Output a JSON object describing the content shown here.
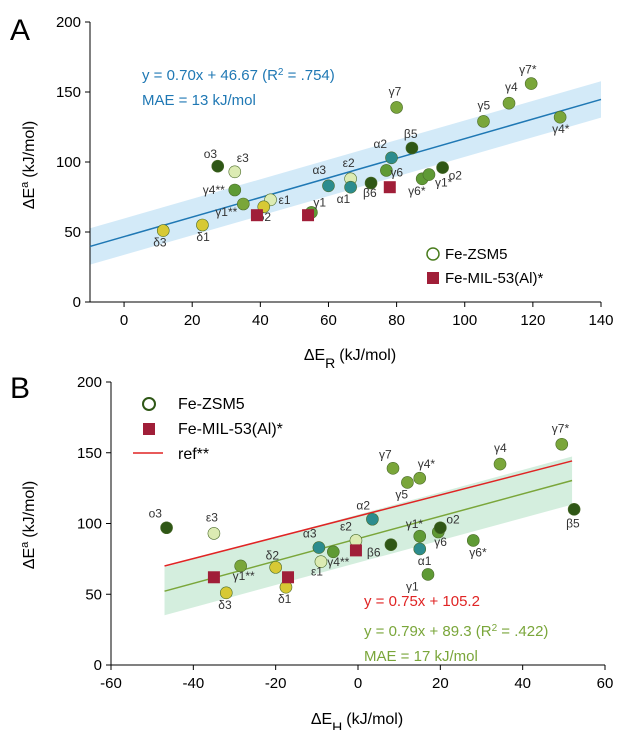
{
  "colors": {
    "zsm5_dark": "#2f5716",
    "zsm5_mid": "#5f9a35",
    "zsm5_green": "#7aa63a",
    "zsm5_yellow": "#d7c934",
    "zsm5_pale": "#dcebb3",
    "zsm5_teal": "#2c8c8e",
    "mil": "#a01e38",
    "fit_a": "#1f78b4",
    "band_a": "#cbe6f7",
    "fit_b": "#7aa63a",
    "band_b": "#cdebd8",
    "ref": "#e02424",
    "mae_b": "#7aa63a"
  },
  "chart_data": [
    {
      "panel_label": "A",
      "type": "scatter",
      "xlabel": "ΔE",
      "xlabel_sub": "R",
      "xlabel_unit": "(kJ/mol)",
      "ylabel": "ΔE",
      "ylabel_sup": "a",
      "ylabel_unit": "(kJ/mol)",
      "xlim": [
        -10,
        140
      ],
      "ylim": [
        0,
        200
      ],
      "xticks": [
        "0",
        "20",
        "40",
        "60",
        "80",
        "100",
        "120",
        "140"
      ],
      "yticks": [
        "0",
        "50",
        "100",
        "150",
        "200"
      ],
      "fit": {
        "slope": 0.7,
        "intercept": 46.67,
        "band": 13
      },
      "equation": "y = 0.70x + 46.67 (R",
      "equation_sup": "2",
      "equation_tail": " = .754)",
      "mae": "MAE = 13 kJ/mol",
      "legend_position": "bottom-right",
      "legend": [
        {
          "label": "Fe-ZSM5",
          "marker": "circle-open"
        },
        {
          "label": "Fe-MIL-53(Al)*",
          "marker": "square"
        }
      ],
      "series": [
        {
          "name": "Fe-ZSM5",
          "marker": "circle",
          "points": [
            {
              "x": 27.5,
              "y": 97,
              "label": "o3",
              "color": "dark"
            },
            {
              "x": 32.5,
              "y": 93,
              "label": "ε3",
              "color": "pale"
            },
            {
              "x": 32.5,
              "y": 80,
              "label": "γ4**",
              "color": "mid"
            },
            {
              "x": 35,
              "y": 70,
              "label": "γ1**",
              "color": "green"
            },
            {
              "x": 43,
              "y": 73,
              "label": "ε1",
              "color": "pale"
            },
            {
              "x": 41,
              "y": 68,
              "label": "δ2",
              "color": "yellow"
            },
            {
              "x": 23,
              "y": 55,
              "label": "δ1",
              "color": "yellow"
            },
            {
              "x": 11.5,
              "y": 51,
              "label": "δ3",
              "color": "yellow"
            },
            {
              "x": 55,
              "y": 64,
              "label": "γ1",
              "color": "mid"
            },
            {
              "x": 60,
              "y": 83,
              "label": "α3",
              "color": "teal"
            },
            {
              "x": 66.5,
              "y": 88,
              "label": "ε2",
              "color": "pale"
            },
            {
              "x": 66.5,
              "y": 82,
              "label": "α1",
              "color": "teal"
            },
            {
              "x": 72.5,
              "y": 85,
              "label": "β6",
              "color": "dark"
            },
            {
              "x": 77,
              "y": 94,
              "label": "γ6",
              "color": "mid"
            },
            {
              "x": 78.5,
              "y": 103,
              "label": "α2",
              "color": "teal"
            },
            {
              "x": 80,
              "y": 139,
              "label": "γ7",
              "color": "green"
            },
            {
              "x": 84.5,
              "y": 110,
              "label": "β5",
              "color": "dark"
            },
            {
              "x": 87.5,
              "y": 88,
              "label": "γ6*",
              "color": "mid"
            },
            {
              "x": 89.5,
              "y": 91,
              "label": "γ1*",
              "color": "mid"
            },
            {
              "x": 93.5,
              "y": 96,
              "label": "o2",
              "color": "dark"
            },
            {
              "x": 105.5,
              "y": 129,
              "label": "γ5",
              "color": "green"
            },
            {
              "x": 113,
              "y": 142,
              "label": "γ4",
              "color": "green"
            },
            {
              "x": 119.5,
              "y": 156,
              "label": "γ7*",
              "color": "green"
            },
            {
              "x": 128,
              "y": 132,
              "label": "γ4*",
              "color": "green"
            }
          ]
        },
        {
          "name": "Fe-MIL-53(Al)*",
          "marker": "square",
          "points": [
            {
              "x": 39,
              "y": 62,
              "color": "mil"
            },
            {
              "x": 54,
              "y": 62,
              "color": "mil"
            },
            {
              "x": 78,
              "y": 82,
              "color": "mil"
            }
          ]
        }
      ]
    },
    {
      "panel_label": "B",
      "type": "scatter",
      "xlabel": "ΔE",
      "xlabel_sub": "H",
      "xlabel_unit": "(kJ/mol)",
      "ylabel": "ΔE",
      "ylabel_sup": "a",
      "ylabel_unit": "(kJ/mol)",
      "xlim": [
        -60,
        60
      ],
      "ylim": [
        0,
        200
      ],
      "xticks": [
        "-60",
        "-40",
        "-20",
        "0",
        "20",
        "40",
        "60"
      ],
      "yticks": [
        "0",
        "50",
        "100",
        "150",
        "200"
      ],
      "fit": {
        "slope": 0.79,
        "intercept": 89.3,
        "band": 17,
        "x_range": [
          -47,
          52
        ]
      },
      "ref_line": {
        "slope": 0.75,
        "intercept": 105.2,
        "x_range": [
          -47,
          52
        ]
      },
      "ref_equation": "y = 0.75x + 105.2",
      "equation": "y = 0.79x + 89.3 (R",
      "equation_sup": "2",
      "equation_tail": " = .422)",
      "mae": "MAE = 17 kJ/mol",
      "legend_position": "top-left",
      "legend": [
        {
          "label": "Fe-ZSM5",
          "marker": "circle-open"
        },
        {
          "label": "Fe-MIL-53(Al)*",
          "marker": "square"
        },
        {
          "label": "ref**",
          "marker": "line"
        }
      ],
      "series": [
        {
          "name": "Fe-ZSM5",
          "marker": "circle",
          "points": [
            {
              "x": -46.5,
              "y": 97,
              "label": "o3",
              "color": "dark"
            },
            {
              "x": -35,
              "y": 93,
              "label": "ε3",
              "color": "pale"
            },
            {
              "x": -28.5,
              "y": 70,
              "label": "γ1**",
              "color": "green"
            },
            {
              "x": -32,
              "y": 51,
              "label": "δ3",
              "color": "yellow"
            },
            {
              "x": -20,
              "y": 69,
              "label": "δ2",
              "color": "yellow"
            },
            {
              "x": -17.5,
              "y": 55,
              "label": "δ1",
              "color": "yellow"
            },
            {
              "x": -9.5,
              "y": 83,
              "label": "α3",
              "color": "teal"
            },
            {
              "x": -9,
              "y": 73,
              "label": "ε1",
              "color": "pale"
            },
            {
              "x": -6,
              "y": 80,
              "label": "γ4**",
              "color": "mid"
            },
            {
              "x": -0.5,
              "y": 88,
              "label": "ε2",
              "color": "pale"
            },
            {
              "x": 3.5,
              "y": 103,
              "label": "α2",
              "color": "teal"
            },
            {
              "x": 8,
              "y": 85,
              "label": "β6",
              "color": "dark"
            },
            {
              "x": 8.5,
              "y": 139,
              "label": "γ7",
              "color": "green"
            },
            {
              "x": 12,
              "y": 129,
              "label": "γ5",
              "color": "green"
            },
            {
              "x": 15,
              "y": 132,
              "label": "γ4*",
              "color": "green"
            },
            {
              "x": 15,
              "y": 91,
              "label": "γ1*",
              "color": "mid"
            },
            {
              "x": 15,
              "y": 82,
              "label": "α1",
              "color": "teal"
            },
            {
              "x": 17,
              "y": 64,
              "label": "γ1",
              "color": "mid"
            },
            {
              "x": 19.5,
              "y": 94,
              "label": "γ6",
              "color": "mid"
            },
            {
              "x": 20,
              "y": 97,
              "label": "o2",
              "color": "dark"
            },
            {
              "x": 28,
              "y": 88,
              "label": "γ6*",
              "color": "mid"
            },
            {
              "x": 34.5,
              "y": 142,
              "label": "γ4",
              "color": "green"
            },
            {
              "x": 49.5,
              "y": 156,
              "label": "γ7*",
              "color": "green"
            },
            {
              "x": 52.5,
              "y": 110,
              "label": "β5",
              "color": "dark"
            }
          ]
        },
        {
          "name": "Fe-MIL-53(Al)*",
          "marker": "square",
          "points": [
            {
              "x": -35,
              "y": 62,
              "color": "mil"
            },
            {
              "x": -17,
              "y": 62,
              "color": "mil"
            },
            {
              "x": -0.5,
              "y": 81,
              "color": "mil"
            }
          ]
        }
      ]
    }
  ]
}
